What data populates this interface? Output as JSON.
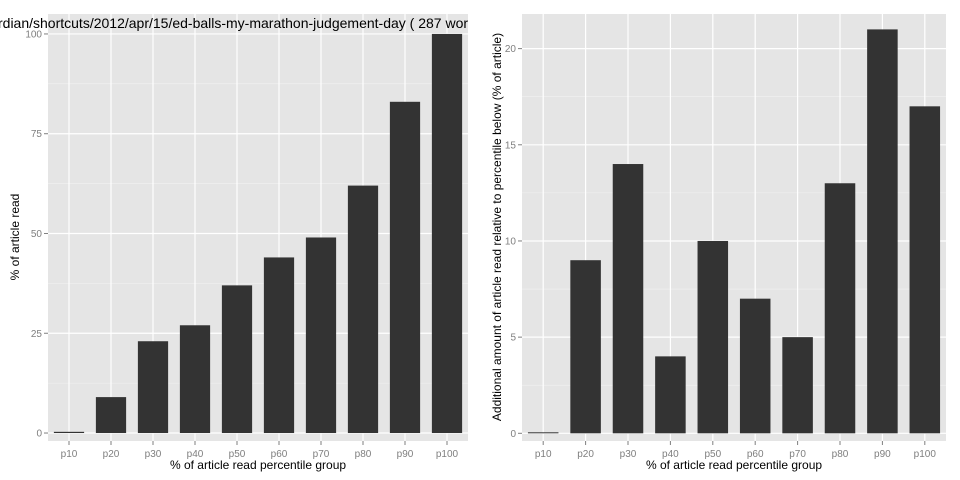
{
  "chart_data": [
    {
      "type": "bar",
      "title": "rdian/shortcuts/2012/apr/15/ed-balls-my-marathon-judgement-day ( 287 wor",
      "xlabel": "% of article read percentile group",
      "ylabel": "% of article read",
      "categories": [
        "p10",
        "p20",
        "p30",
        "p40",
        "p50",
        "p60",
        "p70",
        "p80",
        "p90",
        "p100"
      ],
      "values": [
        0.3,
        9,
        23,
        27,
        37,
        44,
        49,
        62,
        83,
        100
      ],
      "ylim": [
        -2,
        105
      ],
      "yticks": [
        0,
        25,
        50,
        75,
        100
      ],
      "ytick_labels": [
        "0",
        "25",
        "50",
        "75",
        "100"
      ],
      "grid": true
    },
    {
      "type": "bar",
      "title": "",
      "xlabel": "% of article read percentile group",
      "ylabel": "Additional amount of article read relative to percentile below (% of article)",
      "categories": [
        "p10",
        "p20",
        "p30",
        "p40",
        "p50",
        "p60",
        "p70",
        "p80",
        "p90",
        "p100"
      ],
      "values": [
        0.05,
        9,
        14,
        4,
        10,
        7,
        5,
        13,
        21,
        17
      ],
      "ylim": [
        -0.4,
        21.8
      ],
      "yticks": [
        0,
        5,
        10,
        15,
        20
      ],
      "ytick_labels": [
        "0",
        "5",
        "10",
        "15",
        "20"
      ],
      "grid": true
    }
  ],
  "colors": {
    "panel": "#e5e5e5",
    "bar": "#333333",
    "grid": "#ffffff"
  }
}
